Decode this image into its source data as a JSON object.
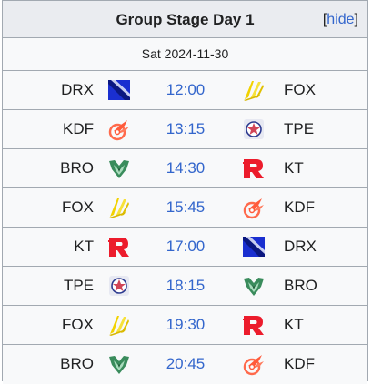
{
  "header": {
    "title": "Group Stage Day 1",
    "hide_prefix": "[",
    "hide_label": "hide",
    "hide_suffix": "]"
  },
  "date": "Sat 2024-11-30",
  "matches": [
    {
      "team1": "DRX",
      "logo1": "drx-logo-icon",
      "time": "12:00",
      "team2": "FOX",
      "logo2": "fox-logo-icon"
    },
    {
      "team1": "KDF",
      "logo1": "kdf-logo-icon",
      "time": "13:15",
      "team2": "TPE",
      "logo2": "tpe-logo-icon"
    },
    {
      "team1": "BRO",
      "logo1": "bro-logo-icon",
      "time": "14:30",
      "team2": "KT",
      "logo2": "kt-logo-icon"
    },
    {
      "team1": "FOX",
      "logo1": "fox-logo-icon",
      "time": "15:45",
      "team2": "KDF",
      "logo2": "kdf-logo-icon"
    },
    {
      "team1": "KT",
      "logo1": "kt-logo-icon",
      "time": "17:00",
      "team2": "DRX",
      "logo2": "drx-logo-icon"
    },
    {
      "team1": "TPE",
      "logo1": "tpe-logo-icon",
      "time": "18:15",
      "team2": "BRO",
      "logo2": "bro-logo-icon"
    },
    {
      "team1": "FOX",
      "logo1": "fox-logo-icon",
      "time": "19:30",
      "team2": "KT",
      "logo2": "kt-logo-icon"
    },
    {
      "team1": "BRO",
      "logo1": "bro-logo-icon",
      "time": "20:45",
      "team2": "KDF",
      "logo2": "kdf-logo-icon"
    }
  ],
  "colors": {
    "link": "#3366cc",
    "border": "#a2a9b1",
    "header_bg": "#eaecf0",
    "cell_bg": "#f8f9fa"
  }
}
